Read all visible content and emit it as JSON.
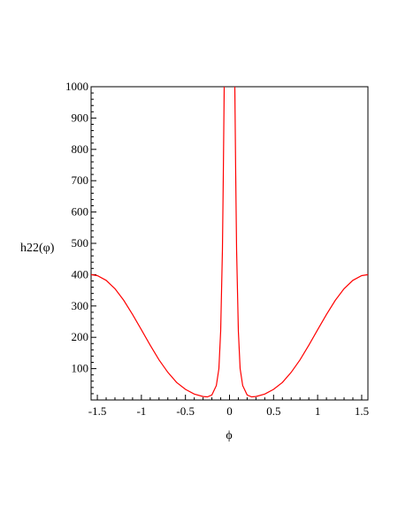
{
  "chart_data": {
    "type": "line",
    "title": "",
    "xlabel": "ϕ",
    "ylabel": "h22(φ)",
    "xlim": [
      -1.5708,
      1.5708
    ],
    "ylim": [
      0,
      1000
    ],
    "x_ticks": [
      "-1.5",
      "-1",
      "-0.5",
      "0",
      "0.5",
      "1",
      "1.5"
    ],
    "x_tick_values": [
      -1.5,
      -1,
      -0.5,
      0,
      0.5,
      1,
      1.5
    ],
    "y_ticks": [
      "100",
      "200",
      "300",
      "400",
      "500",
      "600",
      "700",
      "800",
      "900",
      "1000"
    ],
    "y_tick_values": [
      100,
      200,
      300,
      400,
      500,
      600,
      700,
      800,
      900,
      1000
    ],
    "grid": false,
    "legend": "none",
    "series": [
      {
        "color": "#ff0000",
        "x": [
          -1.5708,
          -1.5,
          -1.4,
          -1.3,
          -1.2,
          -1.1,
          -1.0,
          -0.9,
          -0.8,
          -0.7,
          -0.6,
          -0.5,
          -0.4,
          -0.3,
          -0.25,
          -0.2,
          -0.15,
          -0.12,
          -0.1,
          -0.08,
          -0.07,
          -0.06,
          0.06,
          0.07,
          0.08,
          0.1,
          0.12,
          0.15,
          0.2,
          0.25,
          0.3,
          0.4,
          0.5,
          0.6,
          0.7,
          0.8,
          0.9,
          1.0,
          1.1,
          1.2,
          1.3,
          1.4,
          1.5,
          1.5708
        ],
        "y": [
          400,
          397,
          382,
          355,
          318,
          273,
          224,
          175,
          128,
          88,
          56,
          34,
          19,
          11,
          10,
          16,
          46,
          100,
          220,
          480,
          720,
          1000,
          1000,
          720,
          480,
          220,
          100,
          46,
          16,
          10,
          11,
          19,
          34,
          56,
          88,
          128,
          175,
          224,
          273,
          318,
          355,
          382,
          397,
          400
        ]
      }
    ]
  }
}
